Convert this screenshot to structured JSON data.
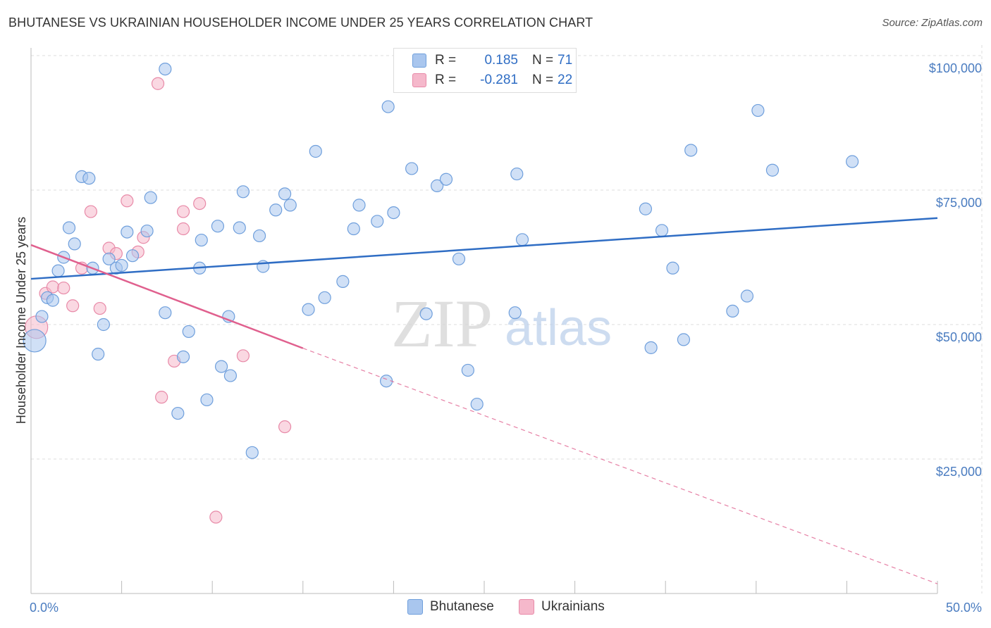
{
  "title": "BHUTANESE VS UKRAINIAN HOUSEHOLDER INCOME UNDER 25 YEARS CORRELATION CHART",
  "source": "Source: ZipAtlas.com",
  "watermark": {
    "zip": "ZIP",
    "atlas": "atlas"
  },
  "legend_top": [
    {
      "r_label": "R =",
      "r_value": "0.185",
      "n_label": "N =",
      "n_value": "71"
    },
    {
      "r_label": "R =",
      "r_value": "-0.281",
      "n_label": "N =",
      "n_value": "22"
    }
  ],
  "bottom_legend": [
    "Bhutanese",
    "Ukrainians"
  ],
  "colors": {
    "blue_fill": "#a9c6ee",
    "blue_stroke": "#6f9fdc",
    "blue_line": "#2f6dc4",
    "pink_fill": "#f5b8cb",
    "pink_stroke": "#e88aa8",
    "pink_line": "#e0608e",
    "grid": "#dddddd",
    "tick_text": "#4a7cc0"
  },
  "chart_data": {
    "type": "scatter",
    "title": "BHUTANESE VS UKRAINIAN HOUSEHOLDER INCOME UNDER 25 YEARS CORRELATION CHART",
    "xlabel": "",
    "ylabel": "Householder Income Under 25 years",
    "xlim": [
      0,
      50
    ],
    "ylim": [
      0,
      105000
    ],
    "x_tick_labels": [
      "0.0%",
      "50.0%"
    ],
    "y_ticks": [
      25000,
      50000,
      75000,
      100000
    ],
    "y_tick_labels": [
      "$25,000",
      "$50,000",
      "$75,000",
      "$100,000"
    ],
    "series": [
      {
        "name": "Bhutanese",
        "r": 0.185,
        "n": 71,
        "trend": {
          "x": [
            0,
            50
          ],
          "y": [
            58500,
            69800
          ],
          "style": "solid"
        },
        "points": [
          {
            "x": 0.2,
            "y": 47000,
            "big": true
          },
          {
            "x": 0.6,
            "y": 51500
          },
          {
            "x": 0.9,
            "y": 55000
          },
          {
            "x": 1.2,
            "y": 54500
          },
          {
            "x": 1.5,
            "y": 60000
          },
          {
            "x": 1.8,
            "y": 62500
          },
          {
            "x": 2.1,
            "y": 68000
          },
          {
            "x": 2.4,
            "y": 65000
          },
          {
            "x": 2.8,
            "y": 77500
          },
          {
            "x": 3.2,
            "y": 77200
          },
          {
            "x": 3.4,
            "y": 60500
          },
          {
            "x": 3.7,
            "y": 44500
          },
          {
            "x": 4.0,
            "y": 50000
          },
          {
            "x": 4.3,
            "y": 62200
          },
          {
            "x": 4.7,
            "y": 60500
          },
          {
            "x": 5.0,
            "y": 61000
          },
          {
            "x": 5.3,
            "y": 67200
          },
          {
            "x": 5.6,
            "y": 62800
          },
          {
            "x": 6.4,
            "y": 67400
          },
          {
            "x": 6.6,
            "y": 73600
          },
          {
            "x": 7.4,
            "y": 97500
          },
          {
            "x": 7.4,
            "y": 52200
          },
          {
            "x": 8.1,
            "y": 33500
          },
          {
            "x": 8.4,
            "y": 44000
          },
          {
            "x": 8.7,
            "y": 48700
          },
          {
            "x": 9.3,
            "y": 60500
          },
          {
            "x": 9.4,
            "y": 65700
          },
          {
            "x": 9.7,
            "y": 36000
          },
          {
            "x": 10.3,
            "y": 68300
          },
          {
            "x": 10.5,
            "y": 42200
          },
          {
            "x": 10.9,
            "y": 51500
          },
          {
            "x": 11.0,
            "y": 40500
          },
          {
            "x": 11.5,
            "y": 68000
          },
          {
            "x": 11.7,
            "y": 74700
          },
          {
            "x": 12.2,
            "y": 26200
          },
          {
            "x": 12.6,
            "y": 66500
          },
          {
            "x": 12.8,
            "y": 60800
          },
          {
            "x": 13.5,
            "y": 71300
          },
          {
            "x": 14.0,
            "y": 74300
          },
          {
            "x": 14.3,
            "y": 72200
          },
          {
            "x": 15.3,
            "y": 52800
          },
          {
            "x": 15.7,
            "y": 82200
          },
          {
            "x": 16.2,
            "y": 55000
          },
          {
            "x": 17.2,
            "y": 58000
          },
          {
            "x": 17.8,
            "y": 67800
          },
          {
            "x": 18.1,
            "y": 72200
          },
          {
            "x": 19.1,
            "y": 69200
          },
          {
            "x": 19.6,
            "y": 39500
          },
          {
            "x": 19.7,
            "y": 90500
          },
          {
            "x": 20.0,
            "y": 70800
          },
          {
            "x": 21.0,
            "y": 79000
          },
          {
            "x": 21.8,
            "y": 52000
          },
          {
            "x": 22.4,
            "y": 75800
          },
          {
            "x": 22.9,
            "y": 77000
          },
          {
            "x": 23.6,
            "y": 62200
          },
          {
            "x": 24.1,
            "y": 41500
          },
          {
            "x": 24.6,
            "y": 35200
          },
          {
            "x": 26.7,
            "y": 52200
          },
          {
            "x": 26.8,
            "y": 78000
          },
          {
            "x": 27.1,
            "y": 65800
          },
          {
            "x": 33.9,
            "y": 71500
          },
          {
            "x": 34.2,
            "y": 45700
          },
          {
            "x": 34.8,
            "y": 67500
          },
          {
            "x": 35.4,
            "y": 60500
          },
          {
            "x": 36.0,
            "y": 47200
          },
          {
            "x": 36.4,
            "y": 82400
          },
          {
            "x": 38.7,
            "y": 52500
          },
          {
            "x": 39.5,
            "y": 55300
          },
          {
            "x": 40.1,
            "y": 89800
          },
          {
            "x": 40.9,
            "y": 78700
          },
          {
            "x": 45.3,
            "y": 80300
          }
        ]
      },
      {
        "name": "Ukrainians",
        "r": -0.281,
        "n": 22,
        "trend": {
          "x": [
            0,
            15
          ],
          "y": [
            64800,
            45600
          ],
          "style": "solid",
          "extended": {
            "x": [
              15,
              50
            ],
            "y": [
              45600,
              1800
            ],
            "style": "dashed"
          }
        },
        "points": [
          {
            "x": 0.3,
            "y": 49500,
            "big": true
          },
          {
            "x": 0.8,
            "y": 55800
          },
          {
            "x": 1.2,
            "y": 57000
          },
          {
            "x": 1.8,
            "y": 56800
          },
          {
            "x": 2.3,
            "y": 53500
          },
          {
            "x": 2.8,
            "y": 60500
          },
          {
            "x": 3.3,
            "y": 71000
          },
          {
            "x": 3.8,
            "y": 53000
          },
          {
            "x": 4.3,
            "y": 64200
          },
          {
            "x": 4.7,
            "y": 63200
          },
          {
            "x": 5.3,
            "y": 73000
          },
          {
            "x": 5.9,
            "y": 63500
          },
          {
            "x": 6.2,
            "y": 66200
          },
          {
            "x": 7.0,
            "y": 94800
          },
          {
            "x": 7.2,
            "y": 36500
          },
          {
            "x": 7.9,
            "y": 43200
          },
          {
            "x": 8.4,
            "y": 71000
          },
          {
            "x": 8.4,
            "y": 67800
          },
          {
            "x": 9.3,
            "y": 72500
          },
          {
            "x": 10.2,
            "y": 14200
          },
          {
            "x": 11.7,
            "y": 44200
          },
          {
            "x": 14.0,
            "y": 31000
          }
        ]
      }
    ]
  }
}
